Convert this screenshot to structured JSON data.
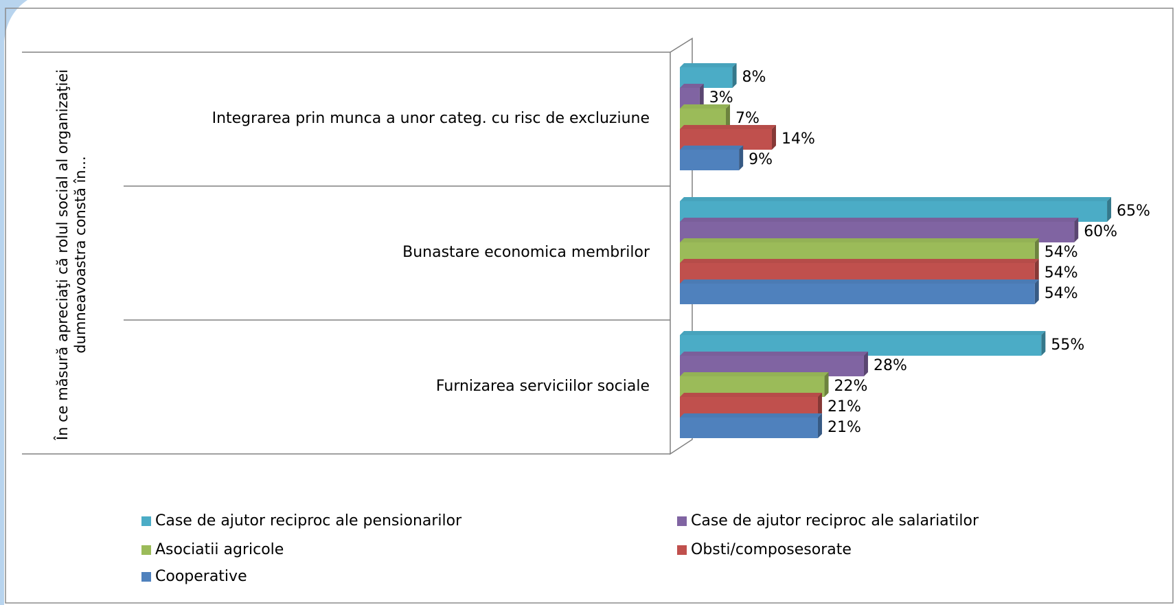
{
  "chart_data": {
    "type": "bar",
    "y_label": "În ce măsură apreciaţi că rolul social al organizaţiei dumneavoastra constă în...",
    "categories": [
      "Integrarea prin munca a unor categ. cu risc de excluziune",
      "Bunastare economica membrilor",
      "Furnizarea serviciilor sociale"
    ],
    "series": [
      {
        "name": "Case de ajutor  reciproc ale pensionarilor",
        "color": "#4bacc6",
        "values": [
          8,
          65,
          55
        ],
        "value_labels": [
          "8%",
          "65%",
          "55%"
        ]
      },
      {
        "name": "Case de ajutor  reciproc ale salariatilor",
        "color": "#8064a2",
        "values": [
          3,
          60,
          28
        ],
        "value_labels": [
          "3%",
          "60%",
          "28%"
        ]
      },
      {
        "name": "Asociatii agricole",
        "color": "#9bbb59",
        "values": [
          7,
          54,
          22
        ],
        "value_labels": [
          "7%",
          "54%",
          "22%"
        ]
      },
      {
        "name": "Obsti/composesorate",
        "color": "#c0504d",
        "values": [
          14,
          54,
          21
        ],
        "value_labels": [
          "14%",
          "54%",
          "21%"
        ]
      },
      {
        "name": "Cooperative",
        "color": "#4f81bd",
        "values": [
          9,
          54,
          21
        ],
        "value_labels": [
          "9%",
          "54%",
          "21%"
        ]
      }
    ],
    "legend": "bottom"
  }
}
